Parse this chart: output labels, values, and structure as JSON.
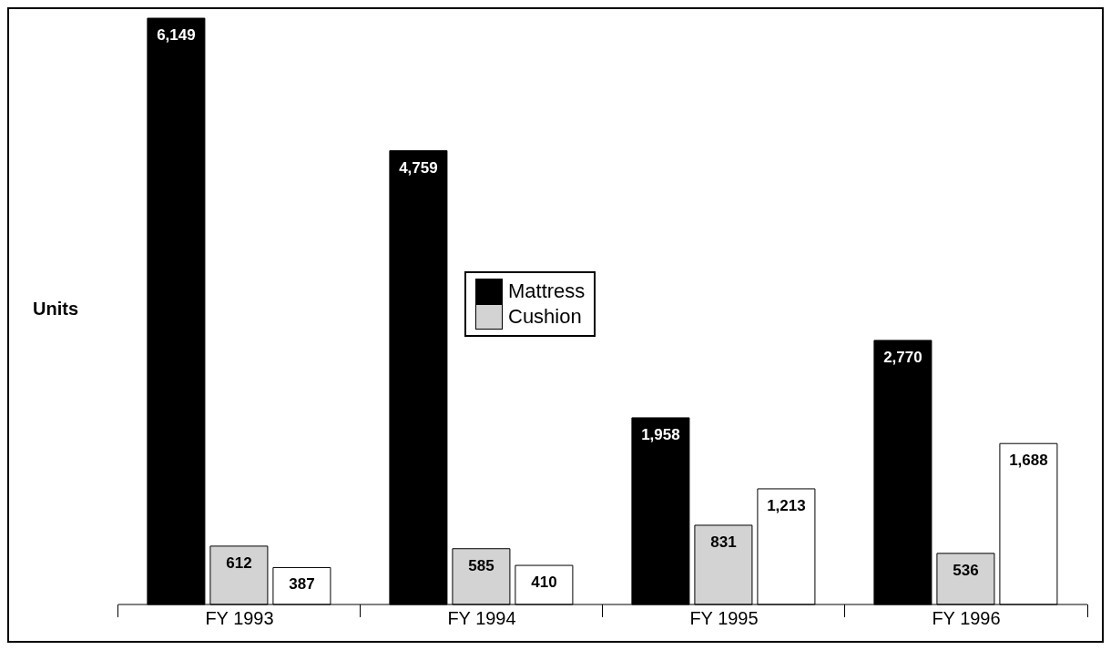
{
  "chart_data": {
    "type": "bar",
    "ylabel": "Units",
    "categories": [
      "FY 1993",
      "FY 1994",
      "FY 1995",
      "FY 1996"
    ],
    "series": [
      {
        "name": "Mattress",
        "color": "#000000",
        "values": [
          6149,
          4759,
          1958,
          2770
        ],
        "value_labels": [
          "6,149",
          "4,759",
          "1,958",
          "2,770"
        ]
      },
      {
        "name": "Cushion",
        "color": "#d3d3d3",
        "values": [
          612,
          585,
          831,
          536
        ],
        "value_labels": [
          "612",
          "585",
          "831",
          "536"
        ]
      },
      {
        "color": "#ffffff",
        "values": [
          387,
          410,
          1213,
          1688
        ],
        "value_labels": [
          "387",
          "410",
          "1,213",
          "1,688"
        ]
      }
    ],
    "legend": "center"
  }
}
